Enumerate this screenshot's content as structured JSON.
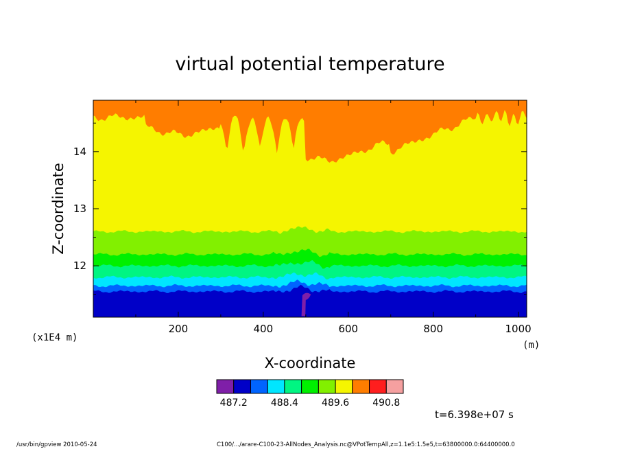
{
  "chart_data": {
    "type": "heatmap",
    "title": "virtual potential temperature",
    "xlabel": "X-coordinate",
    "ylabel": "Z-coordinate",
    "x_unit": "(m)",
    "y_unit": "(x1E4 m)",
    "xlim": [
      0,
      1020
    ],
    "ylim": [
      11.1,
      14.9
    ],
    "x_ticks": [
      "200",
      "400",
      "600",
      "800",
      "1000"
    ],
    "y_ticks": [
      "12",
      "13",
      "14"
    ],
    "grid": false,
    "colorbar": {
      "colors": [
        "#7f1fa8",
        "#0000c8",
        "#0064ff",
        "#00e6ff",
        "#00f582",
        "#00f000",
        "#82f000",
        "#f5f500",
        "#ff7d00",
        "#ff1e1e",
        "#f5a0a0"
      ],
      "labels": [
        "487.2",
        "488.4",
        "489.6",
        "490.8"
      ]
    },
    "bands": [
      {
        "color": "#7f1fa8",
        "note": "purple plume near x=500"
      },
      {
        "color": "#0000c8",
        "z_range": [
          11.1,
          11.55
        ]
      },
      {
        "color": "#0064ff",
        "z_range": [
          11.55,
          11.65
        ]
      },
      {
        "color": "#00e6ff",
        "z_range": [
          11.65,
          11.8
        ]
      },
      {
        "color": "#00f582",
        "z_range": [
          11.8,
          12.0
        ]
      },
      {
        "color": "#00f000",
        "z_range": [
          12.0,
          12.2
        ]
      },
      {
        "color": "#82f000",
        "z_range": [
          12.2,
          12.6
        ]
      },
      {
        "color": "#f5f500",
        "z_range": [
          12.6,
          14.6
        ]
      },
      {
        "color": "#ff7d00",
        "z_range": [
          14.6,
          14.9
        ]
      }
    ],
    "time_label": "t=6.398e+07 s"
  },
  "footer": {
    "left": "/usr/bin/gpview   2010-05-24",
    "right": "C100/.../arare-C100-23-AllNodes_Analysis.nc@VPotTempAll,z=1.1e5:1.5e5,t=63800000.0:64400000.0"
  }
}
